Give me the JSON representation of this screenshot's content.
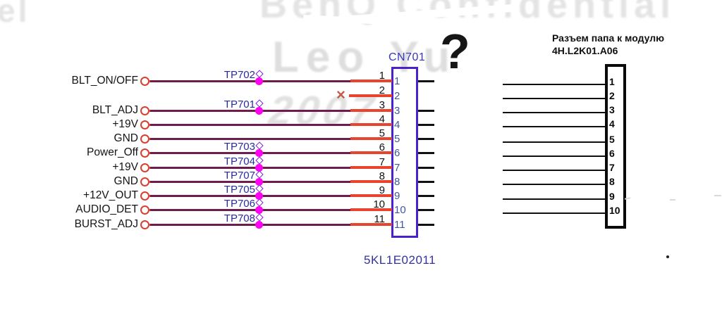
{
  "watermark": {
    "fragment_left": "el",
    "top_text": "BenQ Confidential",
    "name_text": "Leo Yu",
    "year_text": "2007"
  },
  "annotation": {
    "question_mark": "?"
  },
  "cn701": {
    "refdes": "CN701",
    "part_number": "5KL1E02011",
    "rows": [
      {
        "pin": "1",
        "net": "BLT_ON/OFF",
        "testpoint": "TP702",
        "connected": true
      },
      {
        "pin": "2",
        "net": "",
        "testpoint": "",
        "connected": false
      },
      {
        "pin": "3",
        "net": "BLT_ADJ",
        "testpoint": "TP701",
        "connected": true
      },
      {
        "pin": "4",
        "net": "+19V",
        "testpoint": "",
        "connected": true
      },
      {
        "pin": "5",
        "net": "GND",
        "testpoint": "",
        "connected": true
      },
      {
        "pin": "6",
        "net": "Power_Off",
        "testpoint": "TP703",
        "connected": true
      },
      {
        "pin": "7",
        "net": "+19V",
        "testpoint": "TP704",
        "connected": true
      },
      {
        "pin": "8",
        "net": "GND",
        "testpoint": "TP707",
        "connected": true
      },
      {
        "pin": "9",
        "net": "+12V_OUT",
        "testpoint": "TP705",
        "connected": true
      },
      {
        "pin": "10",
        "net": "AUDIO_DET",
        "testpoint": "TP706",
        "connected": true
      },
      {
        "pin": "11",
        "net": "BURST_ADJ",
        "testpoint": "TP708",
        "connected": true
      }
    ]
  },
  "module_connector": {
    "title": "Разъем папа к модулю",
    "part_number": "4H.L2K01.A06",
    "pins": [
      "1",
      "2",
      "3",
      "4",
      "5",
      "6",
      "7",
      "8",
      "9",
      "10"
    ]
  },
  "colors": {
    "wire_dark": "#6e1c4e",
    "wire_red": "#e8432c",
    "terminal_red": "#d84030",
    "testpoint_dot": "#ff00f0",
    "testpoint_diamond": "#7d1fd6",
    "testpoint_label": "#2a2aa0",
    "connector_border": "#4a21cb",
    "connector_text": "#3f57a2",
    "refdes_text": "#3636c0",
    "partnum_text": "#3232a2",
    "noconnect_x": "#c25a49"
  }
}
